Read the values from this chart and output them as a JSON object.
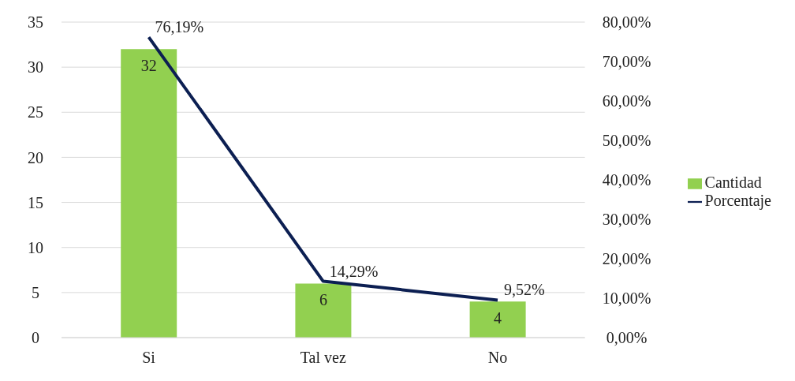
{
  "chart_data": {
    "type": "bar",
    "categories": [
      "Si",
      "Tal vez",
      "No"
    ],
    "series": [
      {
        "name": "Cantidad",
        "color": "#92d050",
        "values": [
          32,
          6,
          4
        ],
        "value_labels": [
          "32",
          "6",
          "4"
        ]
      },
      {
        "name": "Porcentaje",
        "type": "line",
        "axis": "y2",
        "color": "#0c1f52",
        "values": [
          76.19,
          14.29,
          9.52
        ],
        "value_labels": [
          "76,19%",
          "14,29%",
          "9,52%"
        ]
      }
    ],
    "ylim": [
      0,
      35
    ],
    "yticks": [
      0,
      5,
      10,
      15,
      20,
      25,
      30,
      35
    ],
    "y2lim": [
      0,
      80
    ],
    "y2ticks": [
      {
        "value": 0,
        "label": "0,00%"
      },
      {
        "value": 10,
        "label": "10,00%"
      },
      {
        "value": 20,
        "label": "20,00%"
      },
      {
        "value": 30,
        "label": "30,00%"
      },
      {
        "value": 40,
        "label": "40,00%"
      },
      {
        "value": 50,
        "label": "50,00%"
      },
      {
        "value": 60,
        "label": "60,00%"
      },
      {
        "value": 70,
        "label": "70,00%"
      },
      {
        "value": 80,
        "label": "80,00%"
      }
    ],
    "grid": "y",
    "legend": "right",
    "marker": "none",
    "line_style": "solid"
  }
}
